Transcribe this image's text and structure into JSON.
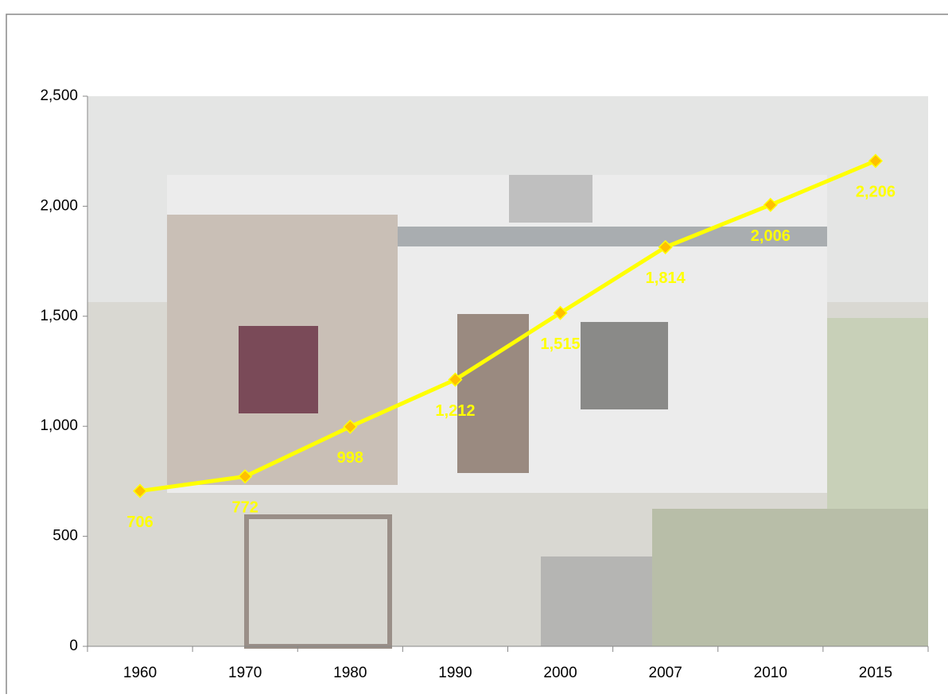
{
  "chart_data": {
    "type": "line",
    "categories": [
      "1960",
      "1970",
      "1980",
      "1990",
      "2000",
      "2007",
      "2010",
      "2015"
    ],
    "values": [
      706,
      772,
      998,
      1212,
      1515,
      1814,
      2006,
      2206
    ],
    "value_labels": [
      "706",
      "772",
      "998",
      "1,212",
      "1,515",
      "1,814",
      "2,006",
      "2,206"
    ],
    "color": "#ffff00",
    "marker_color": "#ffc000",
    "ylim": [
      0,
      2500
    ],
    "yticks": [
      0,
      500,
      {
        "value": 1000,
        "label": "1,000"
      },
      {
        "value": 1500,
        "label": "1,500"
      },
      {
        "value": 2000,
        "label": "2,000"
      },
      {
        "value": 2500,
        "label": "2,500"
      }
    ],
    "grid": false
  }
}
